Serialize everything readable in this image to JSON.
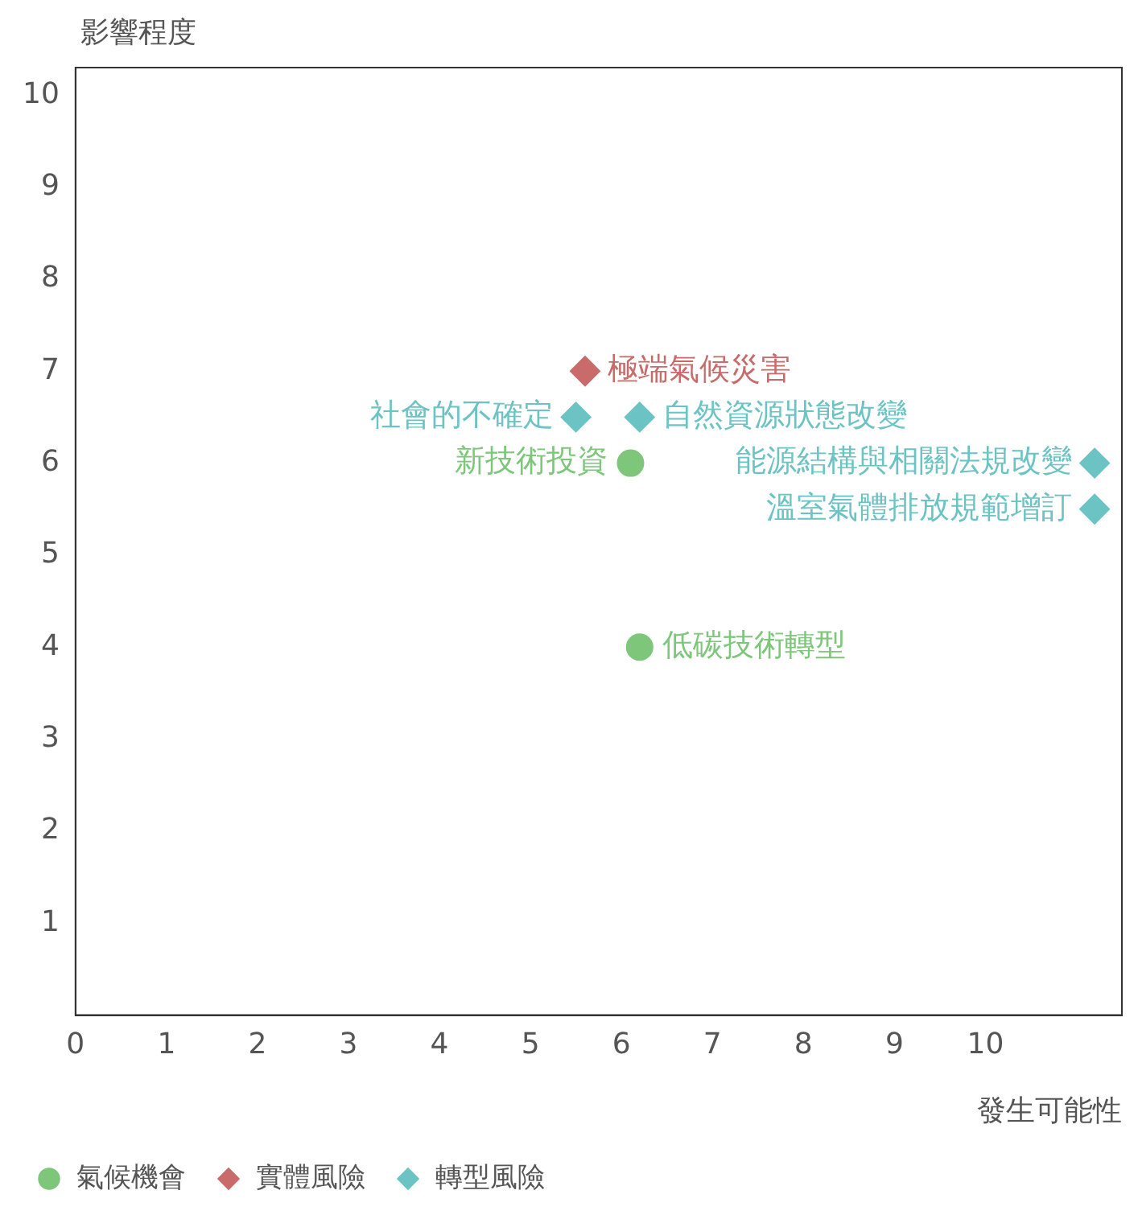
{
  "chart_data": {
    "type": "scatter",
    "xlabel": "發生可能性",
    "ylabel": "影響程度",
    "xlim": [
      0,
      11.5
    ],
    "ylim": [
      0,
      10.3
    ],
    "xticks": [
      0,
      1,
      2,
      3,
      4,
      5,
      6,
      7,
      8,
      9,
      10
    ],
    "yticks": [
      1,
      2,
      3,
      4,
      5,
      6,
      7,
      8,
      9,
      10
    ],
    "grid": false,
    "legend": "bottom left",
    "series": [
      {
        "name": "氣候機會",
        "color": "#7dc67a",
        "marker": "circle",
        "x": [
          6.1,
          6.2
        ],
        "values": [
          6,
          4
        ]
      },
      {
        "name": "實體風險",
        "color": "#c96b6b",
        "marker": "diamond",
        "x": [
          5.6
        ],
        "values": [
          7
        ]
      },
      {
        "name": "轉型風險",
        "color": "#6cc3c3",
        "marker": "diamond",
        "x": [
          5.5,
          6.2,
          11.2,
          11.2
        ],
        "values": [
          6.5,
          6.5,
          6,
          5.5
        ]
      }
    ],
    "annotations": [
      {
        "text": "新技術投資",
        "x": 6.1,
        "y": 6
      },
      {
        "text": "低碳技術轉型",
        "x": 6.2,
        "y": 4
      },
      {
        "text": "極端氣候災害",
        "x": 5.6,
        "y": 7
      },
      {
        "text": "社會的不確定",
        "x": 5.5,
        "y": 6.5
      },
      {
        "text": "自然資源狀態改變",
        "x": 6.2,
        "y": 6.5
      },
      {
        "text": "能源結構與相關法規改變",
        "x": 11.2,
        "y": 6
      },
      {
        "text": "溫室氣體排放規範增訂",
        "x": 11.2,
        "y": 5.5
      }
    ]
  }
}
